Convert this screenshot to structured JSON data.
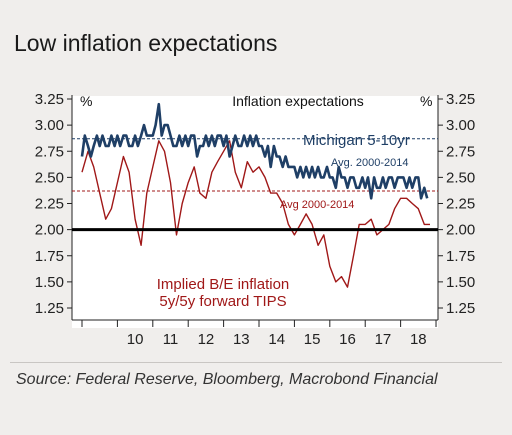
{
  "title": "Low inflation expectations",
  "source": "Source: Federal Reserve, Bloomberg, Macrobond Financial",
  "chart_data": {
    "type": "line",
    "title": "Inflation expectations",
    "left_unit": "%",
    "right_unit": "%",
    "ylim": [
      1.25,
      3.25
    ],
    "yticks": [
      "3.25",
      "3.00",
      "2.75",
      "2.50",
      "2.25",
      "2.00",
      "1.75",
      "1.50",
      "1.25"
    ],
    "xlim": [
      2009.0,
      2018.83
    ],
    "xticks": [
      "10",
      "11",
      "12",
      "13",
      "14",
      "15",
      "16",
      "17",
      "18"
    ],
    "colors": {
      "michigan": "#1f3f66",
      "tips": "#a01818",
      "baseline": "#000000"
    },
    "baseline": 2.0,
    "series": [
      {
        "name": "Michigan 5-10yr",
        "color": "#1f3f66",
        "x": [
          2009.0,
          2009.08,
          2009.17,
          2009.25,
          2009.33,
          2009.42,
          2009.5,
          2009.58,
          2009.67,
          2009.75,
          2009.83,
          2009.92,
          2010.0,
          2010.08,
          2010.17,
          2010.25,
          2010.33,
          2010.42,
          2010.5,
          2010.58,
          2010.67,
          2010.75,
          2010.83,
          2010.92,
          2011.0,
          2011.08,
          2011.17,
          2011.25,
          2011.33,
          2011.42,
          2011.5,
          2011.58,
          2011.67,
          2011.75,
          2011.83,
          2011.92,
          2012.0,
          2012.08,
          2012.17,
          2012.25,
          2012.33,
          2012.42,
          2012.5,
          2012.58,
          2012.67,
          2012.75,
          2012.83,
          2012.92,
          2013.0,
          2013.08,
          2013.17,
          2013.25,
          2013.33,
          2013.42,
          2013.5,
          2013.58,
          2013.67,
          2013.75,
          2013.83,
          2013.92,
          2014.0,
          2014.08,
          2014.17,
          2014.25,
          2014.33,
          2014.42,
          2014.5,
          2014.58,
          2014.67,
          2014.75,
          2014.83,
          2014.92,
          2015.0,
          2015.08,
          2015.17,
          2015.25,
          2015.33,
          2015.42,
          2015.5,
          2015.58,
          2015.67,
          2015.75,
          2015.83,
          2015.92,
          2016.0,
          2016.08,
          2016.17,
          2016.25,
          2016.33,
          2016.42,
          2016.5,
          2016.58,
          2016.67,
          2016.75,
          2016.83,
          2016.92,
          2017.0,
          2017.08,
          2017.17,
          2017.25,
          2017.33,
          2017.42,
          2017.5,
          2017.58,
          2017.67,
          2017.75,
          2017.83,
          2017.92,
          2018.0,
          2018.08,
          2018.17,
          2018.25,
          2018.33,
          2018.42,
          2018.5,
          2018.58,
          2018.67,
          2018.75
        ],
        "values": [
          2.7,
          2.9,
          2.8,
          2.7,
          2.8,
          2.9,
          2.8,
          2.9,
          2.8,
          2.8,
          2.9,
          2.8,
          2.9,
          2.8,
          2.9,
          2.9,
          2.8,
          2.8,
          2.9,
          2.8,
          2.9,
          3.0,
          2.9,
          2.9,
          2.9,
          3.0,
          3.2,
          2.9,
          3.0,
          3.0,
          2.9,
          2.8,
          2.8,
          2.9,
          2.8,
          2.9,
          2.8,
          2.9,
          2.9,
          2.7,
          2.8,
          2.8,
          2.9,
          2.8,
          2.9,
          2.8,
          2.9,
          2.9,
          2.8,
          2.9,
          2.7,
          2.8,
          2.9,
          2.8,
          2.8,
          2.9,
          2.8,
          2.9,
          2.8,
          2.9,
          2.8,
          2.8,
          2.7,
          2.8,
          2.6,
          2.8,
          2.7,
          2.7,
          2.6,
          2.7,
          2.6,
          2.6,
          2.6,
          2.5,
          2.6,
          2.5,
          2.6,
          2.5,
          2.6,
          2.5,
          2.6,
          2.5,
          2.5,
          2.6,
          2.5,
          2.5,
          2.4,
          2.6,
          2.5,
          2.5,
          2.4,
          2.5,
          2.5,
          2.4,
          2.4,
          2.5,
          2.4,
          2.5,
          2.3,
          2.5,
          2.4,
          2.4,
          2.5,
          2.4,
          2.5,
          2.5,
          2.4,
          2.5,
          2.5,
          2.5,
          2.4,
          2.5,
          2.4,
          2.5,
          2.5,
          2.3,
          2.4,
          2.3
        ]
      },
      {
        "name": "Implied B/E inflation 5y/5y forward TIPS",
        "color": "#a01818",
        "x": [
          2009.0,
          2009.17,
          2009.33,
          2009.5,
          2009.67,
          2009.83,
          2010.0,
          2010.17,
          2010.33,
          2010.5,
          2010.67,
          2010.83,
          2011.0,
          2011.17,
          2011.33,
          2011.5,
          2011.67,
          2011.83,
          2012.0,
          2012.17,
          2012.33,
          2012.5,
          2012.67,
          2012.83,
          2013.0,
          2013.17,
          2013.33,
          2013.5,
          2013.67,
          2013.83,
          2014.0,
          2014.17,
          2014.33,
          2014.5,
          2014.67,
          2014.83,
          2015.0,
          2015.17,
          2015.33,
          2015.5,
          2015.67,
          2015.83,
          2016.0,
          2016.17,
          2016.33,
          2016.5,
          2016.67,
          2016.83,
          2017.0,
          2017.17,
          2017.33,
          2017.5,
          2017.67,
          2017.83,
          2018.0,
          2018.17,
          2018.33,
          2018.5,
          2018.67,
          2018.83
        ],
        "values": [
          2.55,
          2.75,
          2.6,
          2.35,
          2.1,
          2.2,
          2.45,
          2.7,
          2.55,
          2.1,
          1.85,
          2.35,
          2.6,
          2.85,
          2.75,
          2.45,
          1.95,
          2.25,
          2.45,
          2.6,
          2.35,
          2.3,
          2.55,
          2.65,
          2.75,
          2.85,
          2.55,
          2.4,
          2.65,
          2.55,
          2.6,
          2.5,
          2.35,
          2.35,
          2.25,
          2.05,
          1.95,
          2.05,
          2.15,
          2.05,
          1.85,
          1.95,
          1.65,
          1.5,
          1.55,
          1.45,
          1.75,
          2.05,
          2.05,
          2.1,
          1.95,
          2.0,
          2.05,
          2.2,
          2.3,
          2.3,
          2.25,
          2.2,
          2.05,
          2.05
        ]
      }
    ],
    "reference_lines": [
      {
        "label": "Avg. 2000-2014",
        "value": 2.87,
        "color": "#1f3f66"
      },
      {
        "label": "Avg 2000-2014",
        "value": 2.37,
        "color": "#a01818"
      }
    ],
    "annotations": [
      {
        "text": "Michigan 5-10yr",
        "color": "#1f3f66"
      },
      {
        "text": "Avg. 2000-2014",
        "color": "#1f3f66"
      },
      {
        "text": "Avg 2000-2014",
        "color": "#a01818"
      },
      {
        "text": "Implied B/E inflation",
        "color": "#a01818"
      },
      {
        "text": "5y/5y forward TIPS",
        "color": "#a01818"
      }
    ],
    "grid": false
  }
}
